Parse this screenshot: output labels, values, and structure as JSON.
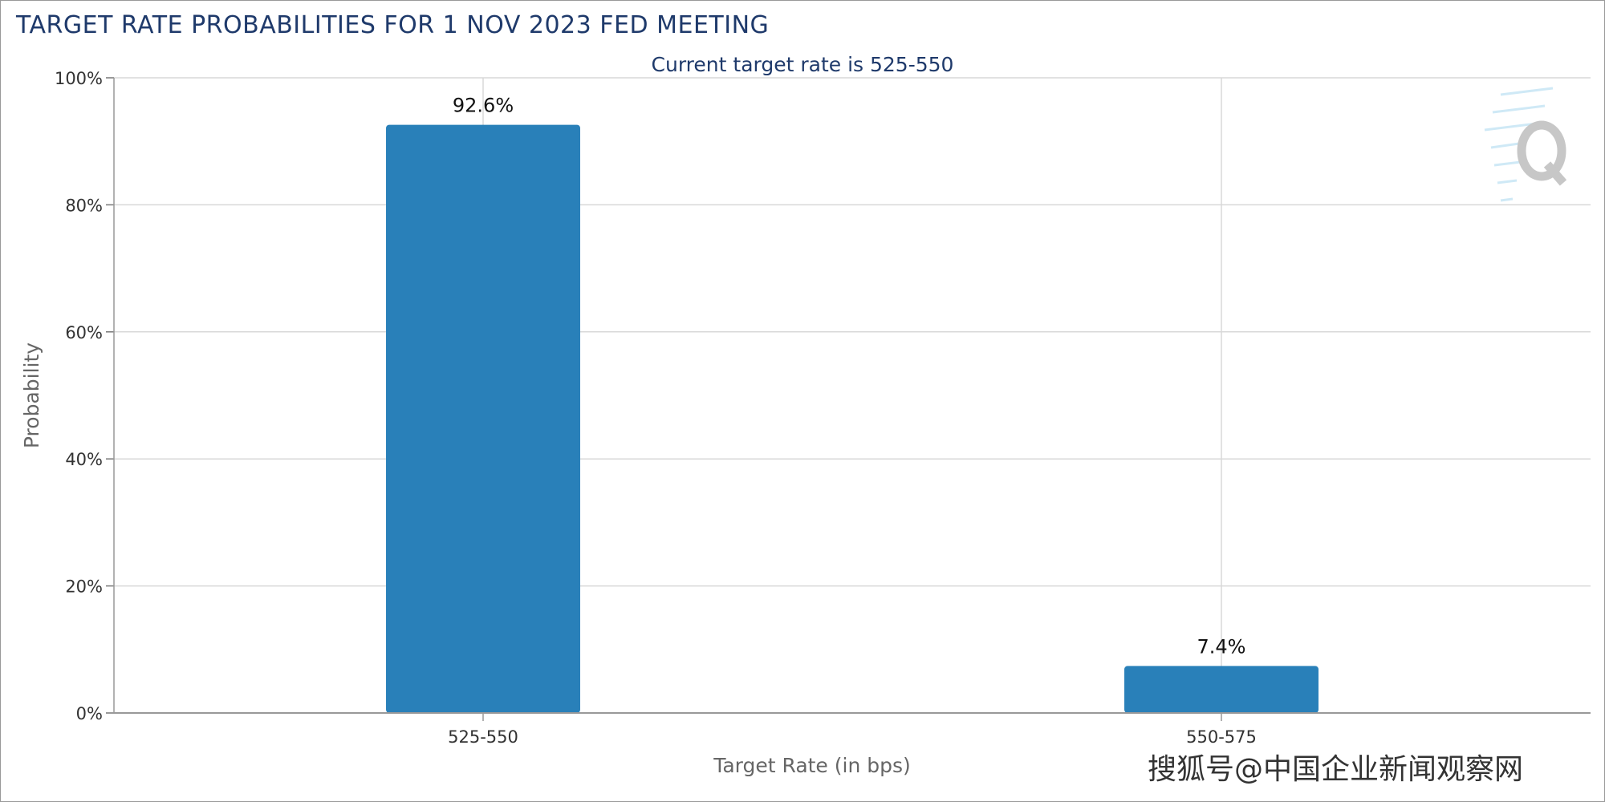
{
  "title": "TARGET RATE PROBABILITIES FOR 1 NOV 2023 FED MEETING",
  "subtitle": "Current target rate is 525-550",
  "watermark": "搜狐号@中国企业新闻观察网",
  "colors": {
    "bar": "#2980b9",
    "title": "#1f3a6b",
    "grid": "#d8d8d8",
    "axis": "#333333",
    "watermark_logo": "#bbbbbb"
  },
  "logo_icon": "q-logo-icon",
  "chart_data": {
    "type": "bar",
    "categories": [
      "525-550",
      "550-575"
    ],
    "values": [
      92.6,
      7.4
    ],
    "data_labels": [
      "92.6%",
      "7.4%"
    ],
    "xlabel": "Target Rate (in bps)",
    "ylabel": "Probability",
    "ylim": [
      0,
      100
    ],
    "yticks": [
      0,
      20,
      40,
      60,
      80,
      100
    ],
    "ytick_labels": [
      "0%",
      "20%",
      "40%",
      "60%",
      "80%",
      "100%"
    ],
    "grid": true,
    "legend": "none"
  }
}
